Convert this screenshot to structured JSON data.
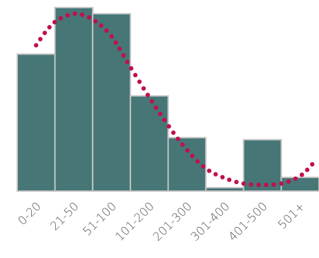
{
  "chart_data": {
    "type": "bar",
    "title": "",
    "xlabel": "",
    "ylabel": "",
    "categories": [
      "0-20",
      "21-50",
      "51-100",
      "101-200",
      "201-300",
      "301-400",
      "401-500",
      "501+"
    ],
    "values": [
      200,
      268,
      259,
      139,
      78,
      5,
      75,
      20
    ],
    "ylim": [
      0,
      270
    ],
    "grid": false,
    "legend": "none",
    "overlay": {
      "type": "line",
      "style": "dotted",
      "x": [
        0.0,
        0.3,
        0.6,
        1.0,
        1.3,
        1.6,
        2.0,
        2.5,
        3.0,
        3.5,
        4.0,
        4.5,
        5.0,
        5.5,
        6.0,
        6.5,
        7.0,
        7.4
      ],
      "values": [
        213,
        236,
        251,
        259,
        256,
        247,
        226,
        181,
        137,
        96,
        60,
        33,
        19,
        11,
        9,
        11,
        22,
        44
      ]
    },
    "colors": {
      "bar": "#467676",
      "bar_border": "#c4c4c4",
      "curve": "#c0104e"
    }
  }
}
